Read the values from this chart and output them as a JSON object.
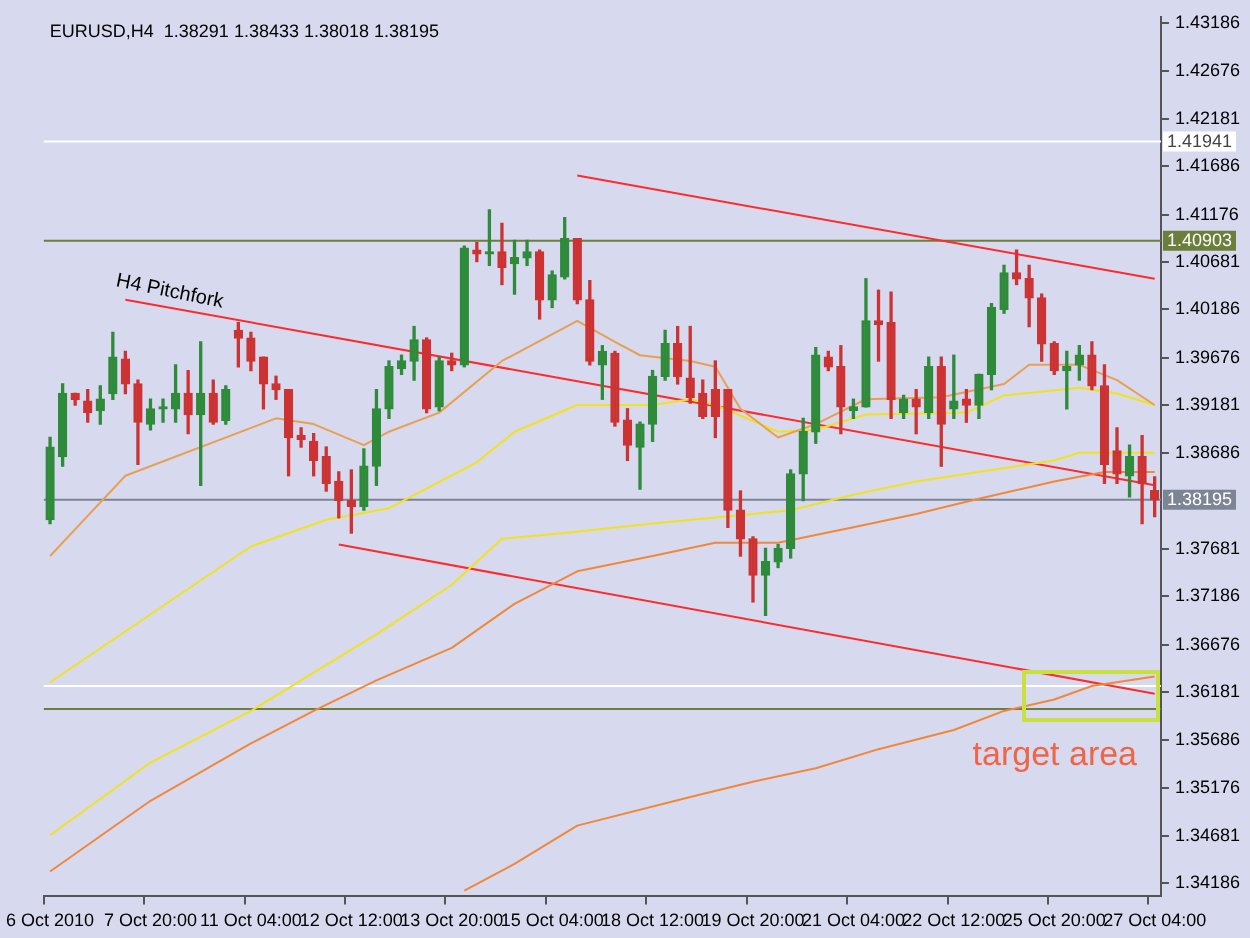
{
  "chart_data": {
    "type": "candlestick",
    "title": "EURUSD,H4  1.38291 1.38433 1.38018 1.38195",
    "categories": [
      "6 Oct 2010",
      null,
      null,
      null,
      null,
      null,
      null,
      null,
      "7 Oct 20:00",
      null,
      null,
      null,
      null,
      null,
      null,
      null,
      "11 Oct 04:00",
      null,
      null,
      null,
      null,
      null,
      null,
      null,
      "12 Oct 12:00",
      null,
      null,
      null,
      null,
      null,
      null,
      null,
      "13 Oct 20:00",
      null,
      null,
      null,
      null,
      null,
      null,
      null,
      "15 Oct 04:00",
      null,
      null,
      null,
      null,
      null,
      null,
      null,
      "18 Oct 12:00",
      null,
      null,
      null,
      null,
      null,
      null,
      null,
      "19 Oct 20:00",
      null,
      null,
      null,
      null,
      null,
      null,
      null,
      "21 Oct 04:00",
      null,
      null,
      null,
      null,
      null,
      null,
      null,
      "22 Oct 12:00",
      null,
      null,
      null,
      null,
      null,
      null,
      null,
      "25 Oct 20:00",
      null,
      null,
      null,
      null,
      null,
      null,
      null,
      "27 Oct 04:00"
    ],
    "ohlc": [
      [
        1.37986,
        1.38846,
        1.37946,
        1.38746
      ],
      [
        1.38646,
        1.39406,
        1.38546,
        1.39306
      ],
      [
        1.39306,
        1.39306,
        1.39186,
        1.39246
      ],
      [
        1.39226,
        1.39346,
        1.39006,
        1.39106
      ],
      [
        1.39126,
        1.39386,
        1.38986,
        1.39246
      ],
      [
        1.39306,
        1.39946,
        1.39246,
        1.39686
      ],
      [
        1.39666,
        1.39746,
        1.39306,
        1.39406
      ],
      [
        1.39406,
        1.39446,
        1.38566,
        1.39006
      ],
      [
        1.38986,
        1.39246,
        1.38926,
        1.39146
      ],
      [
        1.39146,
        1.39246,
        1.39006,
        1.39166
      ],
      [
        1.39146,
        1.39606,
        1.39006,
        1.39306
      ],
      [
        1.39306,
        1.39546,
        1.38886,
        1.39086
      ],
      [
        1.39086,
        1.39846,
        1.38346,
        1.39306
      ],
      [
        1.39306,
        1.39446,
        1.38986,
        1.39006
      ],
      [
        1.39026,
        1.39386,
        1.38986,
        1.39346
      ],
      [
        1.39966,
        1.40046,
        1.39586,
        1.39886
      ],
      [
        1.39886,
        1.39946,
        1.39546,
        1.39646
      ],
      [
        1.39686,
        1.39686,
        1.39146,
        1.39406
      ],
      [
        1.39406,
        1.39486,
        1.39246,
        1.39346
      ],
      [
        1.39346,
        1.39346,
        1.38446,
        1.38846
      ],
      [
        1.38866,
        1.38946,
        1.38746,
        1.38826
      ],
      [
        1.38806,
        1.38886,
        1.38446,
        1.38606
      ],
      [
        1.38646,
        1.38746,
        1.38286,
        1.38366
      ],
      [
        1.38386,
        1.38486,
        1.38006,
        1.38186
      ],
      [
        1.38186,
        1.38506,
        1.37846,
        1.38126
      ],
      [
        1.38126,
        1.38726,
        1.38086,
        1.38546
      ],
      [
        1.38546,
        1.39346,
        1.38346,
        1.39146
      ],
      [
        1.39146,
        1.39646,
        1.39046,
        1.39586
      ],
      [
        1.39566,
        1.39706,
        1.39506,
        1.39646
      ],
      [
        1.39646,
        1.40006,
        1.39446,
        1.39866
      ],
      [
        1.39866,
        1.39886,
        1.39106,
        1.39146
      ],
      [
        1.39166,
        1.39686,
        1.39126,
        1.39646
      ],
      [
        1.39646,
        1.39726,
        1.39546,
        1.39606
      ],
      [
        1.39606,
        1.40846,
        1.39586,
        1.40826
      ],
      [
        1.40806,
        1.40886,
        1.40686,
        1.40766
      ],
      [
        1.40766,
        1.41226,
        1.40646,
        1.40786
      ],
      [
        1.40786,
        1.41086,
        1.40446,
        1.40626
      ],
      [
        1.40666,
        1.40906,
        1.40346,
        1.40726
      ],
      [
        1.40726,
        1.40906,
        1.40646,
        1.40786
      ],
      [
        1.40786,
        1.40806,
        1.40086,
        1.40286
      ],
      [
        1.40286,
        1.40586,
        1.40206,
        1.40546
      ],
      [
        1.40526,
        1.41146,
        1.40506,
        1.40926
      ],
      [
        1.40926,
        1.40926,
        1.40246,
        1.40286
      ],
      [
        1.40286,
        1.40486,
        1.39606,
        1.39646
      ],
      [
        1.39606,
        1.39806,
        1.39246,
        1.39746
      ],
      [
        1.39726,
        1.39746,
        1.38966,
        1.39006
      ],
      [
        1.39026,
        1.39146,
        1.38606,
        1.38766
      ],
      [
        1.38746,
        1.39006,
        1.38306,
        1.38986
      ],
      [
        1.38986,
        1.39546,
        1.38806,
        1.39486
      ],
      [
        1.39486,
        1.39966,
        1.39446,
        1.39826
      ],
      [
        1.39826,
        1.40006,
        1.39406,
        1.39486
      ],
      [
        1.39466,
        1.40006,
        1.39206,
        1.39266
      ],
      [
        1.39306,
        1.39446,
        1.39046,
        1.39066
      ],
      [
        1.39346,
        1.39646,
        1.38846,
        1.39066
      ],
      [
        1.39346,
        1.39346,
        1.37906,
        1.38086
      ],
      [
        1.38086,
        1.38286,
        1.37606,
        1.37786
      ],
      [
        1.37786,
        1.37806,
        1.37126,
        1.37406
      ],
      [
        1.37406,
        1.37686,
        1.36986,
        1.37546
      ],
      [
        1.37546,
        1.37726,
        1.37486,
        1.37686
      ],
      [
        1.37686,
        1.38506,
        1.37586,
        1.38466
      ],
      [
        1.38466,
        1.39046,
        1.38186,
        1.38906
      ],
      [
        1.38906,
        1.39786,
        1.38786,
        1.39706
      ],
      [
        1.39686,
        1.39746,
        1.39546,
        1.39586
      ],
      [
        1.39586,
        1.39806,
        1.38886,
        1.39166
      ],
      [
        1.39126,
        1.39246,
        1.39046,
        1.39166
      ],
      [
        1.39166,
        1.40506,
        1.39166,
        1.40066
      ],
      [
        1.40066,
        1.40386,
        1.39646,
        1.40026
      ],
      [
        1.40046,
        1.40366,
        1.39046,
        1.39246
      ],
      [
        1.39106,
        1.39286,
        1.39046,
        1.39246
      ],
      [
        1.39246,
        1.39346,
        1.38886,
        1.39166
      ],
      [
        1.39106,
        1.39686,
        1.39046,
        1.39586
      ],
      [
        1.39586,
        1.39686,
        1.38546,
        1.38986
      ],
      [
        1.39146,
        1.39706,
        1.39046,
        1.39226
      ],
      [
        1.39246,
        1.39346,
        1.39006,
        1.39186
      ],
      [
        1.39186,
        1.39506,
        1.39046,
        1.39506
      ],
      [
        1.39506,
        1.40246,
        1.39346,
        1.40206
      ],
      [
        1.40186,
        1.40646,
        1.40146,
        1.40566
      ],
      [
        1.40566,
        1.40806,
        1.40446,
        1.40506
      ],
      [
        1.40506,
        1.40646,
        1.40006,
        1.40306
      ],
      [
        1.40306,
        1.40346,
        1.39646,
        1.39826
      ],
      [
        1.39826,
        1.39846,
        1.39506,
        1.39546
      ],
      [
        1.39546,
        1.39746,
        1.39146,
        1.39586
      ],
      [
        1.39606,
        1.39806,
        1.39446,
        1.39706
      ],
      [
        1.39706,
        1.39846,
        1.39346,
        1.39386
      ],
      [
        1.39386,
        1.39606,
        1.38366,
        1.38566
      ],
      [
        1.38706,
        1.38946,
        1.38366,
        1.38466
      ],
      [
        1.38446,
        1.38766,
        1.38226,
        1.38646
      ],
      [
        1.38646,
        1.38866,
        1.37946,
        1.38366
      ],
      [
        1.38291,
        1.38433,
        1.38018,
        1.38195
      ]
    ],
    "colors": [
      "#2e8b3a",
      "#2e8b3a",
      "#cc3333",
      "#cc3333",
      "#2e8b3a",
      "#2e8b3a",
      "#cc3333",
      "#cc3333",
      "#2e8b3a",
      "#2e8b3a",
      "#2e8b3a",
      "#cc3333",
      "#2e8b3a",
      "#cc3333",
      "#2e8b3a",
      "#cc3333",
      "#cc3333",
      "#cc3333",
      "#cc3333",
      "#cc3333",
      "#cc3333",
      "#cc3333",
      "#cc3333",
      "#cc3333",
      "#cc3333",
      "#2e8b3a",
      "#2e8b3a",
      "#2e8b3a",
      "#2e8b3a",
      "#2e8b3a",
      "#cc3333",
      "#2e8b3a",
      "#cc3333",
      "#2e8b3a",
      "#cc3333",
      "#2e8b3a",
      "#cc3333",
      "#2e8b3a",
      "#2e8b3a",
      "#cc3333",
      "#2e8b3a",
      "#2e8b3a",
      "#cc3333",
      "#cc3333",
      "#2e8b3a",
      "#cc3333",
      "#cc3333",
      "#2e8b3a",
      "#2e8b3a",
      "#2e8b3a",
      "#cc3333",
      "#cc3333",
      "#cc3333",
      "#cc3333",
      "#cc3333",
      "#cc3333",
      "#cc3333",
      "#2e8b3a",
      "#2e8b3a",
      "#2e8b3a",
      "#2e8b3a",
      "#2e8b3a",
      "#cc3333",
      "#cc3333",
      "#2e8b3a",
      "#2e8b3a",
      "#cc3333",
      "#cc3333",
      "#2e8b3a",
      "#cc3333",
      "#2e8b3a",
      "#cc3333",
      "#2e8b3a",
      "#cc3333",
      "#2e8b3a",
      "#2e8b3a",
      "#2e8b3a",
      "#cc3333",
      "#cc3333",
      "#cc3333",
      "#cc3333",
      "#2e8b3a",
      "#2e8b3a",
      "#cc3333",
      "#cc3333",
      "#cc3333",
      "#2e8b3a",
      "#cc3333",
      "#cc3333"
    ],
    "series": [
      {
        "type": "line",
        "color": "#e8a050",
        "values": [
          1.37606,
          null,
          null,
          null,
          null,
          null,
          1.38446,
          null,
          null,
          null,
          null,
          null,
          null,
          null,
          null,
          null,
          null,
          null,
          1.39046,
          null,
          null,
          1.38986,
          null,
          null,
          null,
          1.38766,
          null,
          1.38906,
          null,
          null,
          null,
          1.39106,
          null,
          null,
          null,
          null,
          1.39646,
          null,
          null,
          null,
          null,
          null,
          1.40066,
          null,
          null,
          1.39846,
          null,
          1.39706,
          null,
          null,
          null,
          1.39646,
          null,
          1.39586,
          null,
          1.39146,
          null,
          null,
          1.38846,
          null,
          null,
          1.38986,
          null,
          null,
          null,
          1.39246,
          null,
          null,
          null,
          null,
          null,
          1.39266,
          null,
          null,
          null,
          null,
          1.39406,
          null,
          1.39606,
          null,
          null,
          null,
          1.39606,
          null,
          null,
          1.39446,
          null,
          null,
          1.39186
        ]
      },
      {
        "type": "line",
        "color": "#f2e21c",
        "values": [
          1.36286,
          null,
          null,
          null,
          null,
          null,
          null,
          null,
          null,
          null,
          null,
          null,
          null,
          null,
          null,
          null,
          1.37706,
          null,
          null,
          null,
          null,
          null,
          1.37986,
          null,
          null,
          null,
          null,
          1.38106,
          null,
          null,
          null,
          null,
          null,
          null,
          1.38586,
          null,
          null,
          1.38906,
          null,
          null,
          null,
          null,
          1.39186,
          null,
          null,
          null,
          null,
          null,
          1.39186,
          null,
          null,
          1.39246,
          null,
          1.39186,
          null,
          null,
          null,
          null,
          1.38906,
          null,
          null,
          1.38926,
          null,
          null,
          null,
          1.39086,
          null,
          null,
          null,
          null,
          null,
          null,
          null,
          1.39106,
          null,
          null,
          1.39286,
          null,
          null,
          null,
          null,
          null,
          1.39366,
          null,
          null,
          1.39306,
          null,
          null,
          1.39186
        ]
      },
      {
        "type": "line",
        "color": "#f08838",
        "values": [
          1.34306,
          null,
          null,
          null,
          null,
          null,
          null,
          null,
          1.35046,
          null,
          null,
          null,
          null,
          null,
          null,
          null,
          1.35646,
          null,
          null,
          null,
          null,
          1.35986,
          null,
          null,
          null,
          null,
          1.36306,
          null,
          null,
          null,
          null,
          null,
          1.36646,
          null,
          null,
          null,
          null,
          1.37106,
          null,
          null,
          null,
          null,
          1.37446,
          null,
          null,
          null,
          null,
          null,
          1.37606,
          null,
          null,
          null,
          null,
          1.37746,
          null,
          null,
          null,
          null,
          1.37746,
          null,
          null,
          null,
          null,
          null,
          1.37906,
          null,
          null,
          null,
          null,
          1.38046,
          null,
          null,
          null,
          null,
          1.38206,
          null,
          null,
          null,
          null,
          null,
          1.38386,
          null,
          null,
          null,
          1.38486,
          null,
          null,
          null,
          1.38486
        ]
      },
      {
        "type": "line",
        "color": "#f2e21c",
        "values": [
          1.34686,
          null,
          null,
          null,
          null,
          null,
          null,
          null,
          1.35446,
          null,
          null,
          null,
          null,
          null,
          null,
          null,
          1.35986,
          null,
          null,
          null,
          null,
          1.36386,
          null,
          null,
          null,
          null,
          1.36786,
          null,
          null,
          null,
          null,
          null,
          1.37306,
          null,
          null,
          null,
          1.37786,
          null,
          null,
          null,
          null,
          1.37846,
          null,
          null,
          null,
          null,
          null,
          null,
          1.37946,
          null,
          null,
          null,
          null,
          null,
          null,
          null,
          1.38046,
          null,
          null,
          1.38086,
          null,
          null,
          null,
          null,
          1.38246,
          null,
          null,
          null,
          null,
          1.38386,
          null,
          null,
          null,
          null,
          null,
          1.38506,
          null,
          null,
          null,
          null,
          1.38606,
          null,
          1.38686,
          null,
          null,
          null,
          null,
          null,
          1.38686
        ]
      },
      {
        "type": "line",
        "color": "#f08838",
        "values": [
          null,
          null,
          null,
          null,
          null,
          null,
          null,
          null,
          null,
          null,
          null,
          null,
          null,
          null,
          null,
          null,
          null,
          null,
          null,
          null,
          null,
          null,
          null,
          null,
          null,
          null,
          null,
          null,
          null,
          null,
          null,
          null,
          null,
          1.34106,
          null,
          null,
          null,
          1.34386,
          null,
          null,
          null,
          null,
          1.34786,
          null,
          null,
          null,
          null,
          null,
          null,
          null,
          null,
          1.35086,
          null,
          null,
          null,
          null,
          1.35246,
          null,
          null,
          null,
          null,
          1.35386,
          null,
          null,
          null,
          null,
          1.35586,
          null,
          null,
          null,
          null,
          null,
          1.35786,
          null,
          null,
          null,
          1.35986,
          null,
          null,
          null,
          1.36106,
          null,
          null,
          1.36246,
          null,
          null,
          null,
          null,
          1.36346
        ]
      },
      {
        "type": "line",
        "color": "#ff2a2a",
        "values": [
          null,
          null,
          null,
          null,
          null,
          null,
          1.40286,
          null,
          null,
          null,
          null,
          null,
          null,
          null,
          null,
          null,
          null,
          null,
          null,
          null,
          null,
          null,
          null,
          null,
          null,
          null,
          null,
          null,
          null,
          null,
          null,
          null,
          null,
          null,
          null,
          null,
          null,
          null,
          null,
          null,
          null,
          null,
          null,
          null,
          null,
          null,
          null,
          null,
          null,
          null,
          null,
          null,
          null,
          null,
          null,
          null,
          null,
          null,
          null,
          null,
          null,
          null,
          null,
          null,
          null,
          null,
          null,
          null,
          null,
          null,
          null,
          null,
          null,
          null,
          null,
          null,
          null,
          null,
          null,
          null,
          null,
          null,
          null,
          null,
          null,
          null,
          null,
          null,
          1.38346
        ]
      },
      {
        "type": "line",
        "color": "#ff2a2a",
        "values": [
          null,
          null,
          null,
          null,
          null,
          null,
          null,
          null,
          null,
          null,
          null,
          null,
          null,
          null,
          null,
          null,
          null,
          null,
          null,
          null,
          null,
          null,
          null,
          null,
          null,
          null,
          null,
          null,
          null,
          null,
          null,
          null,
          null,
          null,
          null,
          null,
          null,
          null,
          null,
          null,
          null,
          null,
          1.41586,
          null,
          null,
          null,
          null,
          null,
          null,
          null,
          null,
          null,
          null,
          null,
          null,
          null,
          null,
          null,
          null,
          null,
          null,
          null,
          null,
          null,
          null,
          null,
          null,
          null,
          null,
          null,
          null,
          null,
          null,
          null,
          null,
          null,
          null,
          null,
          null,
          null,
          null,
          null,
          null,
          null,
          null,
          null,
          null,
          null,
          1.40506
        ]
      },
      {
        "type": "line",
        "color": "#ff2a2a",
        "values": [
          null,
          null,
          null,
          null,
          null,
          null,
          null,
          null,
          null,
          null,
          null,
          null,
          null,
          null,
          null,
          null,
          null,
          null,
          null,
          null,
          null,
          null,
          null,
          1.37726,
          null,
          null,
          null,
          null,
          null,
          null,
          null,
          null,
          null,
          null,
          null,
          null,
          null,
          null,
          null,
          null,
          null,
          null,
          null,
          null,
          null,
          null,
          null,
          null,
          null,
          null,
          null,
          null,
          null,
          null,
          null,
          null,
          null,
          null,
          null,
          null,
          null,
          null,
          null,
          null,
          null,
          null,
          null,
          null,
          null,
          null,
          null,
          null,
          null,
          null,
          null,
          null,
          null,
          null,
          null,
          null,
          null,
          null,
          null,
          null,
          null,
          null,
          null,
          null,
          1.36166
        ]
      }
    ],
    "ylim": [
      1.34046,
      1.43246
    ],
    "yticks": [
      1.43186,
      1.42676,
      1.42181,
      1.41686,
      1.41176,
      1.40681,
      1.40186,
      1.39676,
      1.39181,
      1.38686,
      1.37681,
      1.37186,
      1.36676,
      1.36181,
      1.35686,
      1.35176,
      1.34681,
      1.34186
    ],
    "ref_lines": [
      {
        "axis": "y",
        "value": 1.41941,
        "label": "1.41941",
        "color": "#ffffff"
      },
      {
        "axis": "y",
        "value": 1.40903,
        "label": "1.40903",
        "color": "#6b7f3a"
      },
      {
        "axis": "y",
        "value": 1.38195,
        "label": "1.38195",
        "color": "#7d8594"
      },
      {
        "axis": "y",
        "value": 1.36246,
        "color": "#ffffff"
      },
      {
        "axis": "y",
        "value": 1.36006,
        "color": "#6b7f3a"
      }
    ],
    "annotations": [
      "H4 Pitchfork",
      "target area"
    ]
  }
}
